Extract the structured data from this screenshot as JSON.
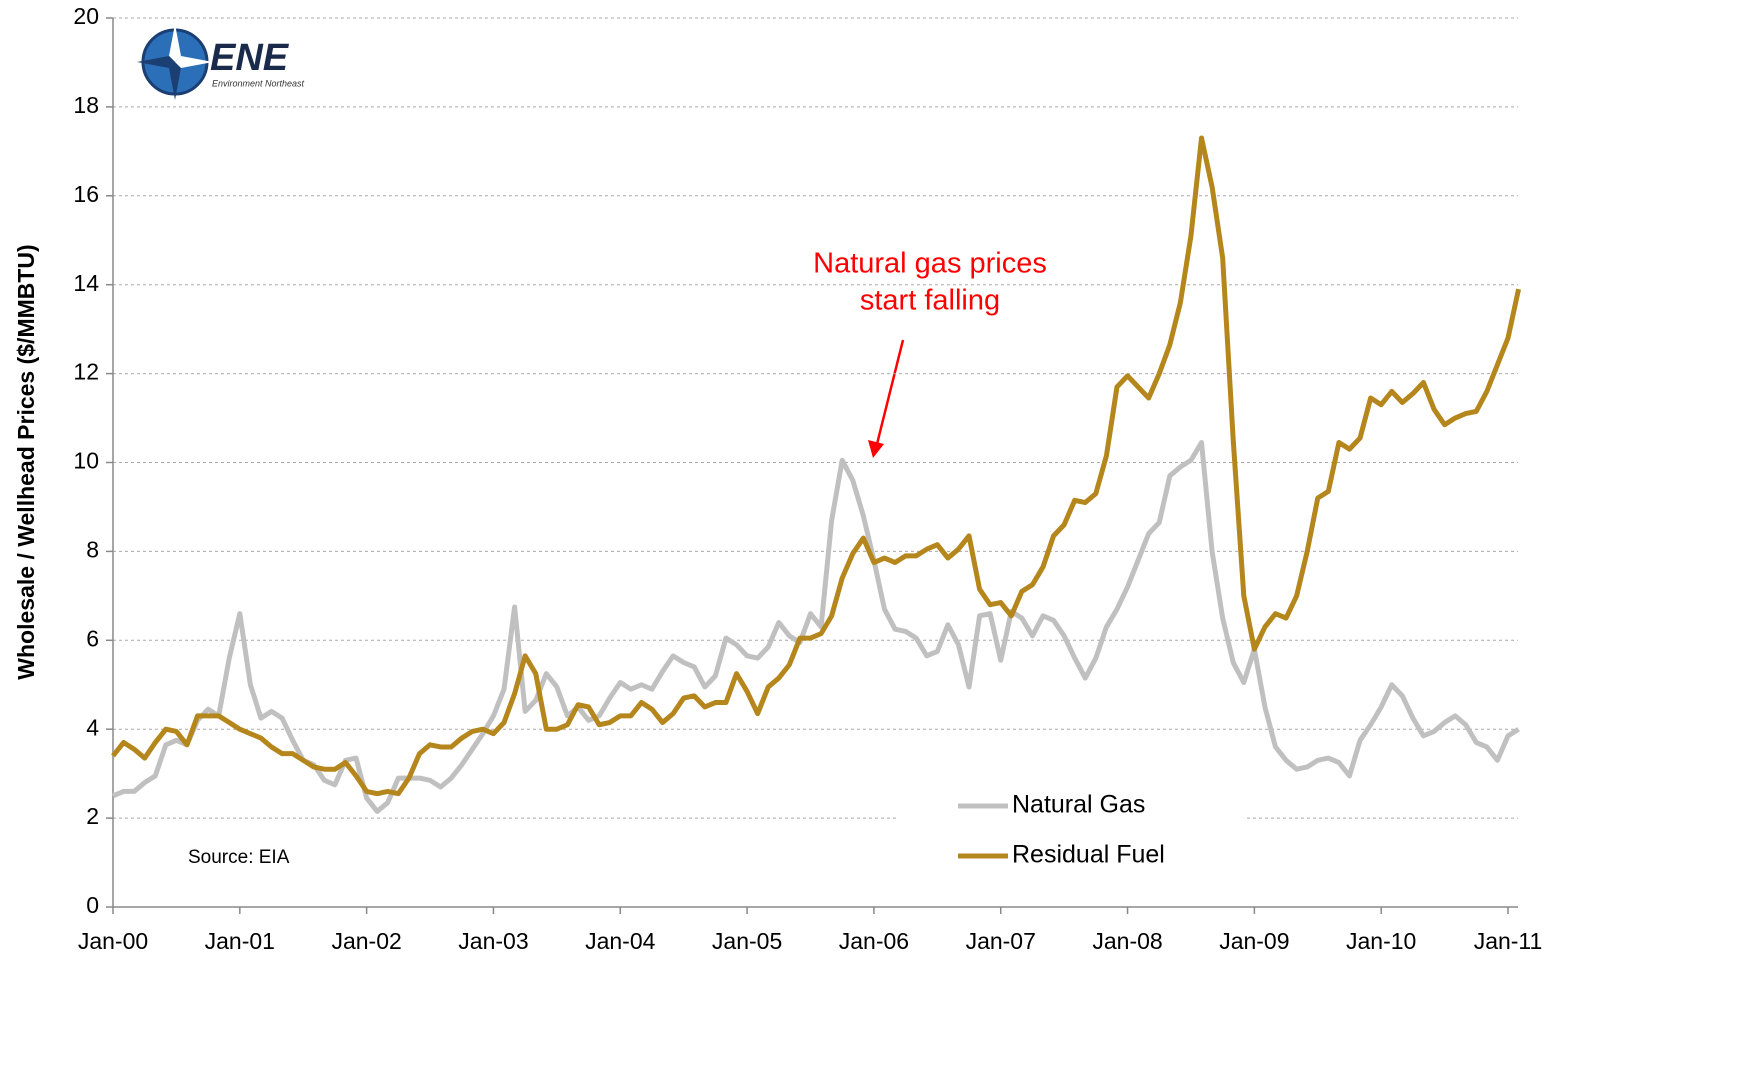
{
  "chart_data": {
    "type": "line",
    "ylabel": "Wholesale / Wellhead  Prices ($/MMBTU)",
    "annotation": {
      "lines": [
        "Natural gas prices",
        "start falling"
      ]
    },
    "source": "Source: EIA",
    "logo": {
      "text": "ENE",
      "subtitle": "Environment Northeast"
    },
    "categories": [
      "Jan-00",
      null,
      null,
      null,
      null,
      null,
      null,
      null,
      null,
      null,
      null,
      null,
      "Jan-01",
      null,
      null,
      null,
      null,
      null,
      null,
      null,
      null,
      null,
      null,
      null,
      "Jan-02",
      null,
      null,
      null,
      null,
      null,
      null,
      null,
      null,
      null,
      null,
      null,
      "Jan-03",
      null,
      null,
      null,
      null,
      null,
      null,
      null,
      null,
      null,
      null,
      null,
      "Jan-04",
      null,
      null,
      null,
      null,
      null,
      null,
      null,
      null,
      null,
      null,
      null,
      "Jan-05",
      null,
      null,
      null,
      null,
      null,
      null,
      null,
      null,
      null,
      null,
      null,
      "Jan-06",
      null,
      null,
      null,
      null,
      null,
      null,
      null,
      null,
      null,
      null,
      null,
      "Jan-07",
      null,
      null,
      null,
      null,
      null,
      null,
      null,
      null,
      null,
      null,
      null,
      "Jan-08",
      null,
      null,
      null,
      null,
      null,
      null,
      null,
      null,
      null,
      null,
      null,
      "Jan-09",
      null,
      null,
      null,
      null,
      null,
      null,
      null,
      null,
      null,
      null,
      null,
      "Jan-10",
      null,
      null,
      null,
      null,
      null,
      null,
      null,
      null,
      null,
      null,
      null,
      "Jan-11",
      null
    ],
    "series": [
      {
        "name": "Natural Gas",
        "color": "#c0c0c0",
        "values": [
          2.5,
          2.6,
          2.6,
          2.8,
          2.95,
          3.65,
          3.75,
          3.65,
          4.2,
          4.45,
          4.3,
          5.6,
          6.6,
          5.0,
          4.25,
          4.4,
          4.25,
          3.75,
          3.3,
          3.2,
          2.85,
          2.75,
          3.3,
          3.35,
          2.45,
          2.15,
          2.35,
          2.9,
          2.9,
          2.9,
          2.85,
          2.7,
          2.9,
          3.2,
          3.55,
          3.9,
          4.3,
          4.9,
          6.75,
          4.4,
          4.65,
          5.25,
          4.95,
          4.3,
          4.5,
          4.2,
          4.3,
          4.7,
          5.05,
          4.9,
          5.0,
          4.9,
          5.3,
          5.65,
          5.5,
          5.4,
          4.95,
          5.2,
          6.05,
          5.9,
          5.65,
          5.6,
          5.85,
          6.4,
          6.1,
          5.95,
          6.6,
          6.3,
          8.7,
          10.05,
          9.6,
          8.8,
          7.8,
          6.7,
          6.25,
          6.2,
          6.05,
          5.65,
          5.75,
          6.35,
          5.9,
          4.95,
          6.55,
          6.6,
          5.55,
          6.65,
          6.5,
          6.1,
          6.55,
          6.45,
          6.1,
          5.6,
          5.15,
          5.6,
          6.3,
          6.7,
          7.2,
          7.8,
          8.4,
          8.65,
          9.7,
          9.9,
          10.05,
          10.45,
          8.0,
          6.5,
          5.5,
          5.05,
          5.8,
          4.5,
          3.6,
          3.3,
          3.1,
          3.15,
          3.3,
          3.35,
          3.25,
          2.95,
          3.75,
          4.1,
          4.5,
          5.0,
          4.75,
          4.25,
          3.85,
          3.95,
          4.15,
          4.3,
          4.1,
          3.7,
          3.6,
          3.3,
          3.85,
          4.0
        ]
      },
      {
        "name": "Residual Fuel",
        "color": "#b5861c",
        "values": [
          3.4,
          3.7,
          3.55,
          3.35,
          3.7,
          4.0,
          3.95,
          3.65,
          4.3,
          4.3,
          4.3,
          4.15,
          4.0,
          3.9,
          3.8,
          3.6,
          3.45,
          3.45,
          3.3,
          3.15,
          3.1,
          3.1,
          3.25,
          2.95,
          2.6,
          2.55,
          2.6,
          2.55,
          2.9,
          3.45,
          3.65,
          3.6,
          3.6,
          3.8,
          3.95,
          4.0,
          3.9,
          4.15,
          4.8,
          5.65,
          5.25,
          4.0,
          4.0,
          4.1,
          4.55,
          4.5,
          4.1,
          4.15,
          4.3,
          4.3,
          4.6,
          4.45,
          4.15,
          4.35,
          4.7,
          4.75,
          4.5,
          4.6,
          4.6,
          5.25,
          4.85,
          4.35,
          4.95,
          5.15,
          5.45,
          6.05,
          6.05,
          6.15,
          6.55,
          7.4,
          7.95,
          8.3,
          7.75,
          7.85,
          7.75,
          7.9,
          7.9,
          8.05,
          8.15,
          7.85,
          8.05,
          8.35,
          7.15,
          6.8,
          6.85,
          6.55,
          7.1,
          7.25,
          7.65,
          8.35,
          8.6,
          9.15,
          9.1,
          9.3,
          10.15,
          11.7,
          11.95,
          11.7,
          11.45,
          12.0,
          12.65,
          13.6,
          15.1,
          17.3,
          16.2,
          14.6,
          10.5,
          7.0,
          5.8,
          6.3,
          6.6,
          6.5,
          7.0,
          8.0,
          9.2,
          9.35,
          10.45,
          10.3,
          10.55,
          11.45,
          11.3,
          11.6,
          11.35,
          11.55,
          11.8,
          11.2,
          10.85,
          11.0,
          11.1,
          11.15,
          11.6,
          12.2,
          12.8,
          13.9
        ]
      }
    ],
    "ylim": [
      0,
      20
    ],
    "yticks": [
      0,
      2,
      4,
      6,
      8,
      10,
      12,
      14,
      16,
      18,
      20
    ],
    "grid": true,
    "legend": "lower right"
  }
}
